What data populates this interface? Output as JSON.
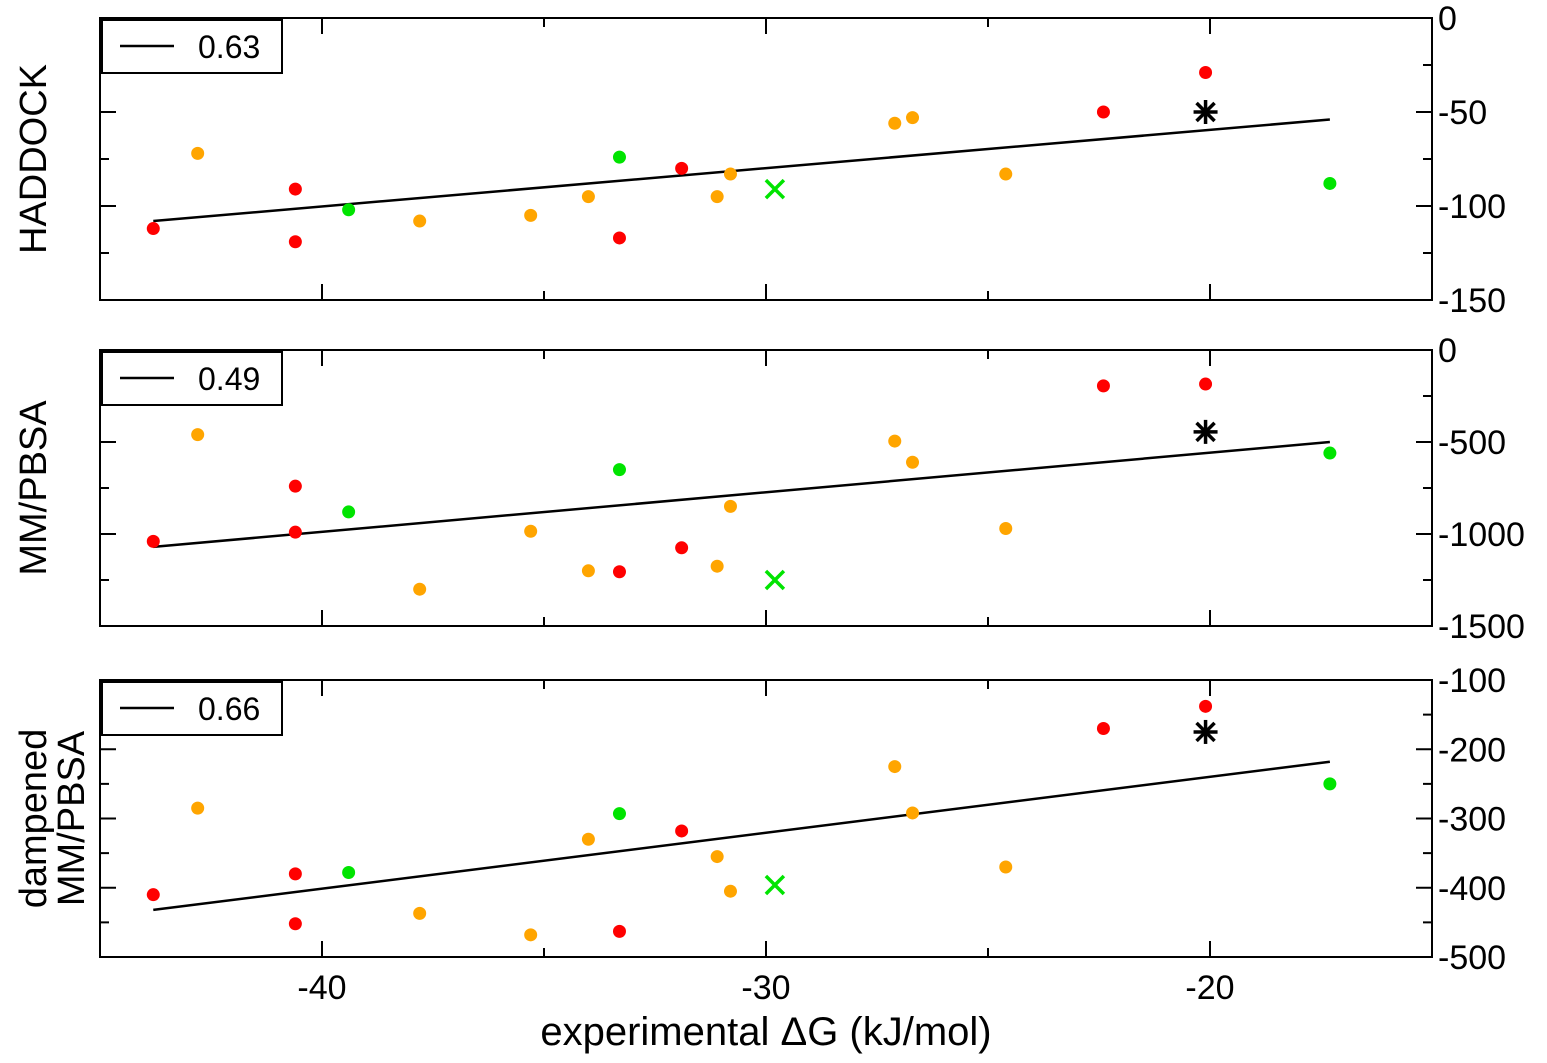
{
  "colors": {
    "red": "#ff0000",
    "orange": "#ffa500",
    "green": "#00e400",
    "black": "#000000"
  },
  "chart_data": [
    {
      "type": "scatter",
      "ylabel": "HADDOCK",
      "legend": {
        "label": "0.63",
        "placement": "top-left"
      },
      "xlim": [
        -45,
        -15
      ],
      "ylim": [
        -150,
        0
      ],
      "yticks": [
        0,
        -50,
        -100,
        -150
      ],
      "points": [
        {
          "x": -43.8,
          "y": -112,
          "color": "red",
          "marker": "circle"
        },
        {
          "x": -42.8,
          "y": -72,
          "color": "orange",
          "marker": "circle"
        },
        {
          "x": -40.6,
          "y": -91,
          "color": "red",
          "marker": "circle"
        },
        {
          "x": -40.6,
          "y": -119,
          "color": "red",
          "marker": "circle"
        },
        {
          "x": -39.4,
          "y": -102,
          "color": "green",
          "marker": "circle"
        },
        {
          "x": -37.8,
          "y": -108,
          "color": "orange",
          "marker": "circle"
        },
        {
          "x": -35.3,
          "y": -105,
          "color": "orange",
          "marker": "circle"
        },
        {
          "x": -34,
          "y": -95,
          "color": "orange",
          "marker": "circle"
        },
        {
          "x": -33.3,
          "y": -74,
          "color": "green",
          "marker": "circle"
        },
        {
          "x": -33.3,
          "y": -117,
          "color": "red",
          "marker": "circle"
        },
        {
          "x": -31.9,
          "y": -80,
          "color": "red",
          "marker": "circle"
        },
        {
          "x": -31.1,
          "y": -95,
          "color": "orange",
          "marker": "circle"
        },
        {
          "x": -30.8,
          "y": -83,
          "color": "orange",
          "marker": "circle"
        },
        {
          "x": -29.8,
          "y": -91,
          "color": "green",
          "marker": "cross"
        },
        {
          "x": -27.1,
          "y": -56,
          "color": "orange",
          "marker": "circle"
        },
        {
          "x": -26.7,
          "y": -53,
          "color": "orange",
          "marker": "circle"
        },
        {
          "x": -24.6,
          "y": -83,
          "color": "orange",
          "marker": "circle"
        },
        {
          "x": -22.4,
          "y": -50,
          "color": "red",
          "marker": "circle"
        },
        {
          "x": -20.1,
          "y": -50,
          "color": "black",
          "marker": "star"
        },
        {
          "x": -20.1,
          "y": -29,
          "color": "red",
          "marker": "circle"
        },
        {
          "x": -17.3,
          "y": -88,
          "color": "green",
          "marker": "circle"
        }
      ],
      "fit": {
        "x": [
          -43.8,
          -17.3
        ],
        "y": [
          -108,
          -54
        ]
      }
    },
    {
      "type": "scatter",
      "ylabel": "MM/PBSA",
      "legend": {
        "label": "0.49",
        "placement": "top-left"
      },
      "xlim": [
        -45,
        -15
      ],
      "ylim": [
        -1500,
        0
      ],
      "yticks": [
        0,
        -500,
        -1000,
        -1500
      ],
      "points": [
        {
          "x": -43.8,
          "y": -1040,
          "color": "red",
          "marker": "circle"
        },
        {
          "x": -42.8,
          "y": -460,
          "color": "orange",
          "marker": "circle"
        },
        {
          "x": -40.6,
          "y": -740,
          "color": "red",
          "marker": "circle"
        },
        {
          "x": -40.6,
          "y": -990,
          "color": "red",
          "marker": "circle"
        },
        {
          "x": -39.4,
          "y": -880,
          "color": "green",
          "marker": "circle"
        },
        {
          "x": -37.8,
          "y": -1300,
          "color": "orange",
          "marker": "circle"
        },
        {
          "x": -35.3,
          "y": -985,
          "color": "orange",
          "marker": "circle"
        },
        {
          "x": -34,
          "y": -1200,
          "color": "orange",
          "marker": "circle"
        },
        {
          "x": -33.3,
          "y": -650,
          "color": "green",
          "marker": "circle"
        },
        {
          "x": -33.3,
          "y": -1205,
          "color": "red",
          "marker": "circle"
        },
        {
          "x": -31.9,
          "y": -1075,
          "color": "red",
          "marker": "circle"
        },
        {
          "x": -31.1,
          "y": -1175,
          "color": "orange",
          "marker": "circle"
        },
        {
          "x": -30.8,
          "y": -850,
          "color": "orange",
          "marker": "circle"
        },
        {
          "x": -29.8,
          "y": -1250,
          "color": "green",
          "marker": "cross"
        },
        {
          "x": -27.1,
          "y": -495,
          "color": "orange",
          "marker": "circle"
        },
        {
          "x": -26.7,
          "y": -610,
          "color": "orange",
          "marker": "circle"
        },
        {
          "x": -24.6,
          "y": -970,
          "color": "orange",
          "marker": "circle"
        },
        {
          "x": -22.4,
          "y": -195,
          "color": "red",
          "marker": "circle"
        },
        {
          "x": -20.1,
          "y": -445,
          "color": "black",
          "marker": "star"
        },
        {
          "x": -20.1,
          "y": -185,
          "color": "red",
          "marker": "circle"
        },
        {
          "x": -17.3,
          "y": -560,
          "color": "green",
          "marker": "circle"
        }
      ],
      "fit": {
        "x": [
          -43.8,
          -17.3
        ],
        "y": [
          -1070,
          -500
        ]
      }
    },
    {
      "type": "scatter",
      "ylabel": [
        "dampened",
        "MM/PBSA"
      ],
      "xlabel": "experimental ΔG (kJ/mol)",
      "legend": {
        "label": "0.66",
        "placement": "top-left"
      },
      "xlim": [
        -45,
        -15
      ],
      "ylim": [
        -500,
        -100
      ],
      "yticks": [
        -100,
        -200,
        -300,
        -400,
        -500
      ],
      "xticks": [
        -40,
        -30,
        -20
      ],
      "points": [
        {
          "x": -43.8,
          "y": -410,
          "color": "red",
          "marker": "circle"
        },
        {
          "x": -42.8,
          "y": -285,
          "color": "orange",
          "marker": "circle"
        },
        {
          "x": -40.6,
          "y": -380,
          "color": "red",
          "marker": "circle"
        },
        {
          "x": -40.6,
          "y": -452,
          "color": "red",
          "marker": "circle"
        },
        {
          "x": -39.4,
          "y": -378,
          "color": "green",
          "marker": "circle"
        },
        {
          "x": -37.8,
          "y": -437,
          "color": "orange",
          "marker": "circle"
        },
        {
          "x": -35.3,
          "y": -468,
          "color": "orange",
          "marker": "circle"
        },
        {
          "x": -34,
          "y": -330,
          "color": "orange",
          "marker": "circle"
        },
        {
          "x": -33.3,
          "y": -293,
          "color": "green",
          "marker": "circle"
        },
        {
          "x": -33.3,
          "y": -463,
          "color": "red",
          "marker": "circle"
        },
        {
          "x": -31.9,
          "y": -318,
          "color": "red",
          "marker": "circle"
        },
        {
          "x": -31.1,
          "y": -355,
          "color": "orange",
          "marker": "circle"
        },
        {
          "x": -30.8,
          "y": -405,
          "color": "orange",
          "marker": "circle"
        },
        {
          "x": -29.8,
          "y": -396,
          "color": "green",
          "marker": "cross"
        },
        {
          "x": -27.1,
          "y": -225,
          "color": "orange",
          "marker": "circle"
        },
        {
          "x": -26.7,
          "y": -292,
          "color": "orange",
          "marker": "circle"
        },
        {
          "x": -24.6,
          "y": -370,
          "color": "orange",
          "marker": "circle"
        },
        {
          "x": -22.4,
          "y": -170,
          "color": "red",
          "marker": "circle"
        },
        {
          "x": -20.1,
          "y": -175,
          "color": "black",
          "marker": "star"
        },
        {
          "x": -20.1,
          "y": -138,
          "color": "red",
          "marker": "circle"
        },
        {
          "x": -17.3,
          "y": -250,
          "color": "green",
          "marker": "circle"
        }
      ],
      "fit": {
        "x": [
          -43.8,
          -17.3
        ],
        "y": [
          -432,
          -218
        ]
      }
    }
  ]
}
